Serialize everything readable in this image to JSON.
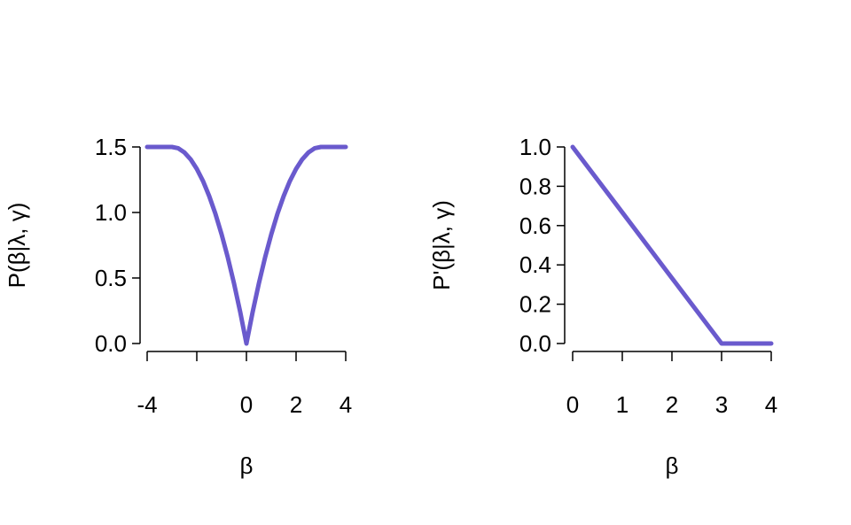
{
  "colors": {
    "series": "#6A5ACD",
    "axis": "#000000",
    "background": "#FFFFFF"
  },
  "chart_data": [
    {
      "type": "line",
      "title": "",
      "xlabel": "β",
      "ylabel": "P(β|λ, γ)",
      "xlim": [
        -4,
        4
      ],
      "ylim": [
        0,
        1.5
      ],
      "x_ticks": [
        -4,
        -2,
        0,
        2,
        4
      ],
      "x_tick_labels": [
        "-4",
        "",
        "0",
        "2",
        "4"
      ],
      "y_ticks": [
        0,
        0.5,
        1,
        1.5
      ],
      "y_tick_labels": [
        "0.0",
        "0.5",
        "1.0",
        "1.5"
      ],
      "grid": false,
      "series": [
        {
          "x": [
            -4,
            -3.5,
            -3,
            -2.75,
            -2.5,
            -2.25,
            -2,
            -1.75,
            -1.5,
            -1.25,
            -1,
            -0.75,
            -0.5,
            -0.25,
            0,
            0.25,
            0.5,
            0.75,
            1,
            1.25,
            1.5,
            1.75,
            2,
            2.25,
            2.5,
            2.75,
            3,
            3.5,
            4
          ],
          "values": [
            1.5,
            1.5,
            1.5,
            1.49,
            1.458,
            1.406,
            1.333,
            1.24,
            1.125,
            0.99,
            0.833,
            0.656,
            0.458,
            0.24,
            0,
            0.24,
            0.458,
            0.656,
            0.833,
            0.99,
            1.125,
            1.24,
            1.333,
            1.406,
            1.458,
            1.49,
            1.5,
            1.5,
            1.5
          ]
        }
      ]
    },
    {
      "type": "line",
      "title": "",
      "xlabel": "β",
      "ylabel": "P'(β|λ, γ)",
      "xlim": [
        0,
        4
      ],
      "ylim": [
        0,
        1
      ],
      "x_ticks": [
        0,
        1,
        2,
        3,
        4
      ],
      "x_tick_labels": [
        "0",
        "1",
        "2",
        "3",
        "4"
      ],
      "y_ticks": [
        0,
        0.2,
        0.4,
        0.6,
        0.8,
        1
      ],
      "y_tick_labels": [
        "0.0",
        "0.2",
        "0.4",
        "0.6",
        "0.8",
        "1.0"
      ],
      "grid": false,
      "series": [
        {
          "x": [
            0,
            1,
            2,
            3,
            3.5,
            4
          ],
          "values": [
            1,
            0.667,
            0.333,
            0,
            0,
            0
          ]
        }
      ]
    }
  ]
}
